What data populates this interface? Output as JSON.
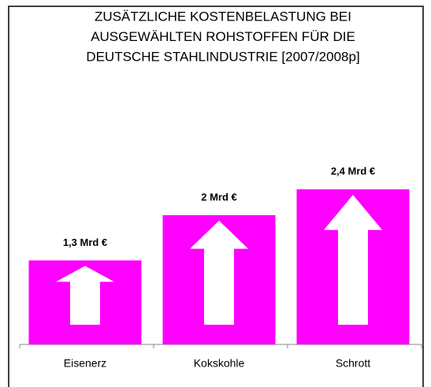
{
  "chart_data": {
    "type": "bar",
    "title": [
      "ZUSÄTZLICHE KOSTENBELASTUNG BEI",
      "AUSGEWÄHLTEN ROHSTOFFEN FÜR DIE",
      "DEUTSCHE STAHLINDUSTRIE [2007/2008p]"
    ],
    "categories": [
      "Eisenerz",
      "Kokskohle",
      "Schrott"
    ],
    "values": [
      1.3,
      2,
      2.4
    ],
    "value_labels": [
      "1,3 Mrd €",
      "2 Mrd €",
      "2,4  Mrd €"
    ],
    "color": "#ff00ff"
  }
}
